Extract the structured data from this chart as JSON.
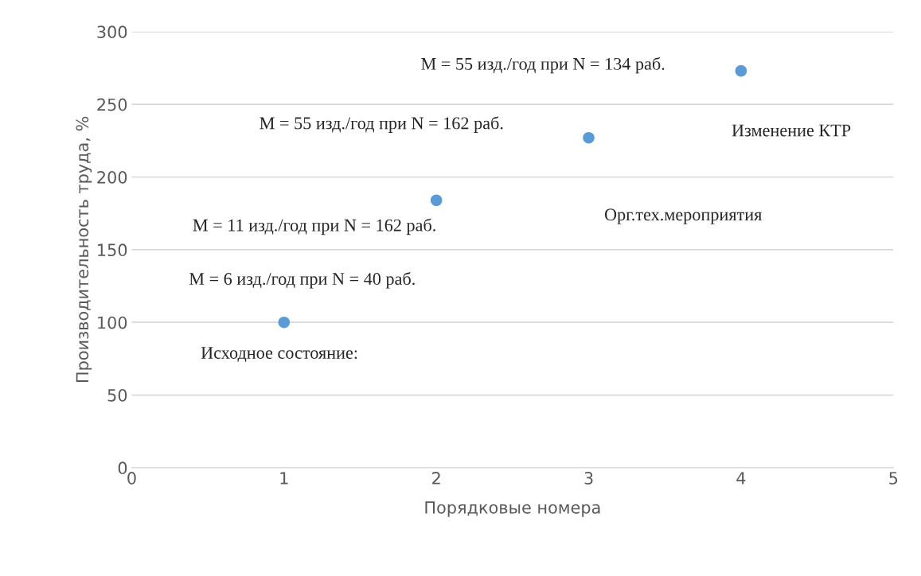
{
  "chart_data": {
    "type": "scatter",
    "xlabel": "Порядковые номера",
    "ylabel": "Производительность труда, %",
    "x": [
      1,
      2,
      3,
      4
    ],
    "series": [
      {
        "color": "#5b9bd5",
        "values": [
          100,
          184,
          227,
          273
        ]
      }
    ],
    "xlim": [
      0,
      5
    ],
    "xticks": [
      0,
      1,
      2,
      3,
      4,
      5
    ],
    "ylim": [
      0,
      300
    ],
    "yticks": [
      0,
      50,
      100,
      150,
      200,
      250,
      300
    ],
    "grid": "y",
    "marker": "circle",
    "legend": false,
    "annotations": [
      "M = 55 изд./год при N = 134 раб.",
      "M = 55 изд./год при N = 162 раб.",
      "Изменение КТР",
      "Орг.тех.мероприятия",
      "M = 11 изд./год при N = 162 раб.",
      "M = 6 изд./год при N = 40 раб.",
      "Исходное состояние:"
    ]
  }
}
